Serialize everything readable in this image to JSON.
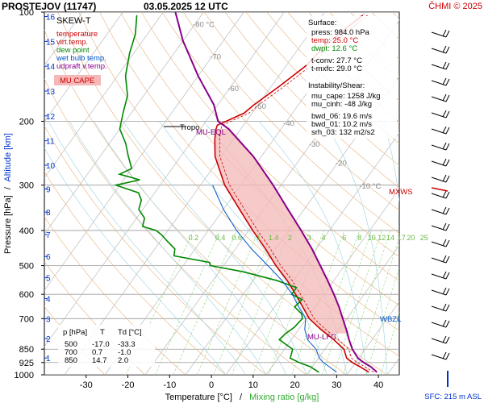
{
  "header": {
    "station": "PROSTEJOV (11747)",
    "datetime": "03.05.2025 12 UTC",
    "copyright": "ČHMI © 2025"
  },
  "legend": {
    "title": "SKEW-T",
    "items": [
      {
        "label": "temperature",
        "color": "#cc0000"
      },
      {
        "label": "virt.temp.",
        "color": "#cc0000"
      },
      {
        "label": "dew point",
        "color": "#008800"
      },
      {
        "label": "wet bulb temp.",
        "color": "#0055cc"
      },
      {
        "label": "udpraft v.temp.",
        "color": "#880088"
      }
    ],
    "cape_label": "MU CAPE",
    "cape_color": "#f4b8b8"
  },
  "surface": {
    "title": "Surface:",
    "press": "press: 984.0 hPa",
    "temp": "temp: 25.0 °C",
    "dwpt": "dwpt: 12.6 °C",
    "tconv": "t-conv: 27.7 °C",
    "tmxfc": "t-mxfc: 29.0 °C"
  },
  "instability": {
    "title": "Instability/Shear:",
    "mu_cape": "mu_cape: 1258 J/kg",
    "mu_cinh": "mu_cinh: -48 J/kg",
    "bwd_06": "bwd_06: 19.6 m/s",
    "bwd_01": "bwd_01: 10.2 m/s",
    "srh_03": "srh_03: 132 m2/s2"
  },
  "table": {
    "headers": [
      "p [hPa]",
      "T",
      "Td [°C]"
    ],
    "rows": [
      [
        "500",
        "-17.0",
        "-33.3"
      ],
      [
        "700",
        "0.7",
        "-1.0"
      ],
      [
        "850",
        "14.7",
        "2.0"
      ]
    ]
  },
  "annotations": {
    "tropo": "Tropo",
    "mu_eql": "MU-EQL",
    "mu_lfc": "MU-LFC",
    "mxws": "MXWS",
    "wbzl": "WBZL",
    "sfc": "SFC: 215 m ASL"
  },
  "chart_data": {
    "type": "line",
    "xlabel": "Temperature [°C]",
    "xlabel_sep": "/",
    "xlabel2": "Mixing ratio [g/kg]",
    "ylabel": "Pressure [hPa]",
    "ylabel_sep": "/",
    "ylabel2": "Altitude [km]",
    "xlim": [
      -40,
      45
    ],
    "ylim": [
      1000,
      100
    ],
    "x_ticks": [
      -30,
      -20,
      -10,
      0,
      10,
      20,
      30,
      40
    ],
    "p_ticks": [
      100,
      200,
      300,
      400,
      500,
      600,
      700,
      850,
      925,
      1000
    ],
    "km_ticks": [
      1,
      2,
      3,
      4,
      5,
      6,
      7,
      8,
      9,
      10,
      11,
      12,
      13,
      14,
      15,
      16
    ],
    "isotherm_labels": [
      {
        "t": -80,
        "label": "-80 °C",
        "p": 110
      },
      {
        "t": -70,
        "label": "-70",
        "p": 135
      },
      {
        "t": -60,
        "label": "-60",
        "p": 165
      },
      {
        "t": -50,
        "label": "-50",
        "p": 185
      },
      {
        "t": -40,
        "label": "-40",
        "p": 206
      },
      {
        "t": -30,
        "label": "-30",
        "p": 235
      },
      {
        "t": -20,
        "label": "-20",
        "p": 265
      },
      {
        "t": -10,
        "label": "-10 °C",
        "p": 307
      }
    ],
    "mixing_ratio_labels": [
      "0.2",
      "0.4",
      "0.6",
      "1",
      "1.4",
      "2",
      "3",
      "4",
      "6",
      "8",
      "10",
      "12",
      "14",
      "17",
      "20",
      "25"
    ],
    "mixing_ratios": [
      0.2,
      0.4,
      0.6,
      1,
      1.4,
      2,
      3,
      4,
      6,
      8,
      10,
      12,
      14,
      17,
      20,
      25
    ],
    "series": [
      {
        "key": "temperature",
        "color": "#cc0000",
        "points": [
          [
            984,
            25.0
          ],
          [
            950,
            21.8
          ],
          [
            925,
            19.2
          ],
          [
            900,
            17.0
          ],
          [
            850,
            14.7
          ],
          [
            800,
            10.5
          ],
          [
            750,
            5.5
          ],
          [
            700,
            0.7
          ],
          [
            650,
            -3.0
          ],
          [
            600,
            -7.0
          ],
          [
            550,
            -11.5
          ],
          [
            500,
            -17.0
          ],
          [
            450,
            -22.5
          ],
          [
            400,
            -29.0
          ],
          [
            350,
            -36.0
          ],
          [
            300,
            -44.0
          ],
          [
            250,
            -51.5
          ],
          [
            225,
            -54.5
          ],
          [
            212,
            -56.0
          ],
          [
            205,
            -56.5
          ],
          [
            200,
            -55.0
          ],
          [
            190,
            -52.0
          ],
          [
            180,
            -51.0
          ],
          [
            160,
            -48.0
          ],
          [
            140,
            -45.0
          ],
          [
            125,
            -44.0
          ],
          [
            112,
            -42.0
          ],
          [
            102,
            -40.0
          ]
        ]
      },
      {
        "key": "dew_point",
        "color": "#008800",
        "points": [
          [
            984,
            12.6
          ],
          [
            950,
            9.5
          ],
          [
            925,
            6.0
          ],
          [
            900,
            3.0
          ],
          [
            850,
            2.0
          ],
          [
            800,
            -3.0
          ],
          [
            770,
            -2.5
          ],
          [
            740,
            -1.5
          ],
          [
            700,
            -1.0
          ],
          [
            680,
            -2.0
          ],
          [
            650,
            -5.0
          ],
          [
            620,
            -4.5
          ],
          [
            600,
            -8.0
          ],
          [
            575,
            -8.0
          ],
          [
            550,
            -14.0
          ],
          [
            520,
            -24.0
          ],
          [
            500,
            -33.3
          ],
          [
            490,
            -34.0
          ],
          [
            470,
            -44.0
          ],
          [
            450,
            -45.0
          ],
          [
            430,
            -48.0
          ],
          [
            410,
            -51.0
          ],
          [
            400,
            -53.0
          ],
          [
            390,
            -57.0
          ],
          [
            370,
            -58.0
          ],
          [
            350,
            -61.0
          ],
          [
            330,
            -62.0
          ],
          [
            315,
            -64.0
          ],
          [
            300,
            -71.0
          ],
          [
            290,
            -66.0
          ],
          [
            280,
            -72.0
          ],
          [
            270,
            -70.0
          ],
          [
            250,
            -73.0
          ],
          [
            230,
            -76.0
          ],
          [
            210,
            -80.0
          ],
          [
            190,
            -82.0
          ],
          [
            170,
            -84.0
          ],
          [
            150,
            -88.0
          ],
          [
            130,
            -91.0
          ],
          [
            115,
            -93.0
          ],
          [
            102,
            -96.0
          ]
        ]
      },
      {
        "key": "wet_bulb",
        "color": "#0055cc",
        "points": [
          [
            984,
            17.0
          ],
          [
            950,
            14.2
          ],
          [
            925,
            12.0
          ],
          [
            900,
            10.2
          ],
          [
            850,
            7.8
          ],
          [
            800,
            4.0
          ],
          [
            750,
            1.5
          ],
          [
            700,
            -0.2
          ],
          [
            650,
            -4.0
          ],
          [
            600,
            -7.8
          ],
          [
            550,
            -12.8
          ],
          [
            500,
            -19.0
          ],
          [
            450,
            -26.0
          ],
          [
            400,
            -33.0
          ],
          [
            350,
            -40.0
          ],
          [
            300,
            -47.0
          ]
        ]
      },
      {
        "key": "parcel",
        "color": "#880088",
        "points": [
          [
            984,
            27.0
          ],
          [
            950,
            24.5
          ],
          [
            925,
            22.0
          ],
          [
            900,
            19.8
          ],
          [
            850,
            16.8
          ],
          [
            800,
            14.3
          ],
          [
            750,
            11.8
          ],
          [
            700,
            9.0
          ],
          [
            650,
            6.0
          ],
          [
            600,
            2.5
          ],
          [
            550,
            -1.5
          ],
          [
            500,
            -6.0
          ],
          [
            450,
            -11.0
          ],
          [
            400,
            -17.0
          ],
          [
            350,
            -24.0
          ],
          [
            300,
            -32.0
          ],
          [
            250,
            -42.0
          ],
          [
            210,
            -53.0
          ],
          [
            200,
            -57.0
          ],
          [
            180,
            -61.0
          ],
          [
            150,
            -70.0
          ],
          [
            120,
            -80.0
          ],
          [
            100,
            -87.0
          ]
        ]
      }
    ],
    "cape_region": {
      "lfc_p": 770,
      "eql_p": 210
    }
  }
}
